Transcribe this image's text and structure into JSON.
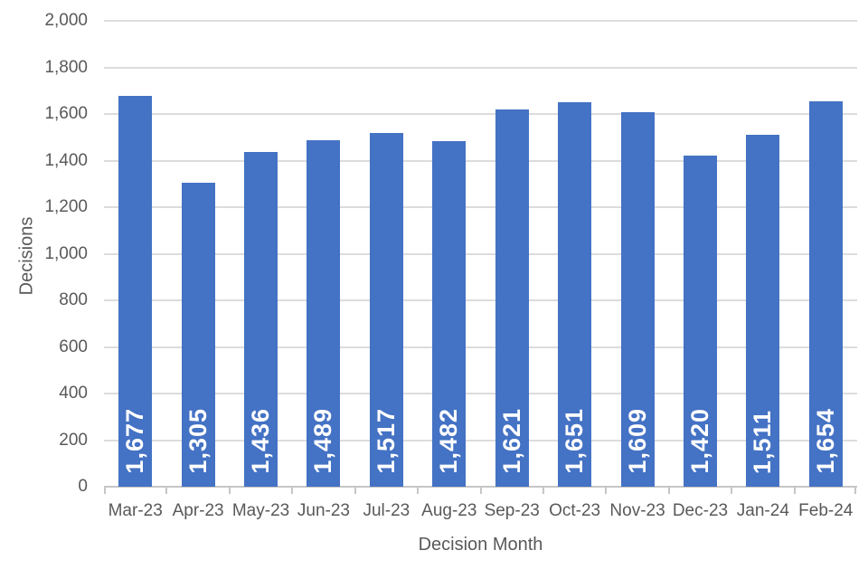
{
  "chart_data": {
    "type": "bar",
    "title": "",
    "xlabel": "Decision Month",
    "ylabel": "Decisions",
    "categories": [
      "Mar-23",
      "Apr-23",
      "May-23",
      "Jun-23",
      "Jul-23",
      "Aug-23",
      "Sep-23",
      "Oct-23",
      "Nov-23",
      "Dec-23",
      "Jan-24",
      "Feb-24"
    ],
    "values": [
      1677,
      1305,
      1436,
      1489,
      1517,
      1482,
      1621,
      1651,
      1609,
      1420,
      1511,
      1654
    ],
    "value_labels": [
      "1,677",
      "1,305",
      "1,436",
      "1,489",
      "1,517",
      "1,482",
      "1,621",
      "1,651",
      "1,609",
      "1,420",
      "1,511",
      "1,654"
    ],
    "ylim": [
      0,
      2000
    ],
    "ytick_step": 200,
    "ytick_labels": [
      "0",
      "200",
      "400",
      "600",
      "800",
      "1,000",
      "1,200",
      "1,400",
      "1,600",
      "1,800",
      "2,000"
    ],
    "grid": true,
    "legend": "none",
    "bar_color": "#4472C4",
    "bar_label_color": "#FFFFFF",
    "axis_text_color": "#595959",
    "gridline_color": "#DCDCDC",
    "axis_line_color": "#C6C6C6"
  }
}
